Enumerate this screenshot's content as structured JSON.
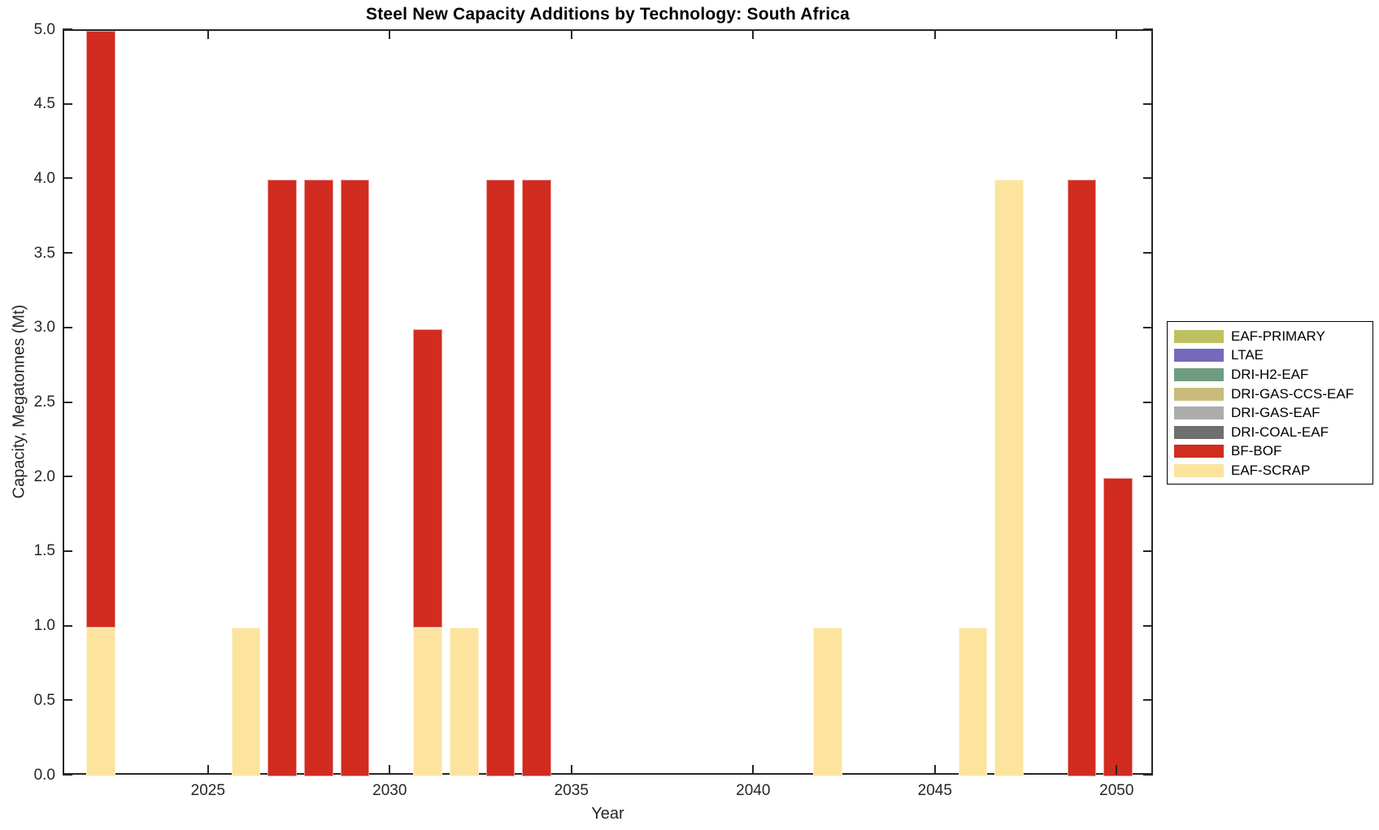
{
  "title": "Steel New Capacity Additions by Technology: South Africa",
  "colors": {
    "background": "#FFFFFF",
    "axis": "#262626",
    "text": "#262626",
    "legend_border": "#000000"
  },
  "chart_data": {
    "type": "bar",
    "stacked": true,
    "title": "Steel New Capacity Additions by Technology: South Africa",
    "xlabel": "Year",
    "ylabel": "Capacity, Megatonnes (Mt)",
    "xlim": [
      2021,
      2051
    ],
    "ylim": [
      0,
      5
    ],
    "bar_width_years": 0.8,
    "grid": false,
    "xticks": [
      2025,
      2030,
      2035,
      2040,
      2045,
      2050
    ],
    "yticks": [
      {
        "value": 0.0,
        "label": "0.0"
      },
      {
        "value": 0.5,
        "label": "0.5"
      },
      {
        "value": 1.0,
        "label": "1.0"
      },
      {
        "value": 1.5,
        "label": "1.5"
      },
      {
        "value": 2.0,
        "label": "2.0"
      },
      {
        "value": 2.5,
        "label": "2.5"
      },
      {
        "value": 3.0,
        "label": "3.0"
      },
      {
        "value": 3.5,
        "label": "3.5"
      },
      {
        "value": 4.0,
        "label": "4.0"
      },
      {
        "value": 4.5,
        "label": "4.5"
      },
      {
        "value": 5.0,
        "label": "5.0"
      }
    ],
    "legend_position": "right-outside",
    "series": [
      {
        "name": "EAF-PRIMARY",
        "color": "#BDC161",
        "points": []
      },
      {
        "name": "LTAE",
        "color": "#7569BE",
        "points": []
      },
      {
        "name": "DRI-H2-EAF",
        "color": "#6F9C80",
        "points": []
      },
      {
        "name": "DRI-GAS-CCS-EAF",
        "color": "#C8BB7B",
        "points": []
      },
      {
        "name": "DRI-GAS-EAF",
        "color": "#ACACAC",
        "points": []
      },
      {
        "name": "DRI-COAL-EAF",
        "color": "#6F6F6F",
        "points": []
      },
      {
        "name": "BF-BOF",
        "color": "#D22B20",
        "points": [
          {
            "year": 2022,
            "value": 4
          },
          {
            "year": 2027,
            "value": 4
          },
          {
            "year": 2028,
            "value": 4
          },
          {
            "year": 2029,
            "value": 4
          },
          {
            "year": 2031,
            "value": 2
          },
          {
            "year": 2033,
            "value": 4
          },
          {
            "year": 2034,
            "value": 4
          },
          {
            "year": 2049,
            "value": 4
          },
          {
            "year": 2050,
            "value": 2
          }
        ]
      },
      {
        "name": "EAF-SCRAP",
        "color": "#FCE49E",
        "points": [
          {
            "year": 2022,
            "value": 1
          },
          {
            "year": 2026,
            "value": 1
          },
          {
            "year": 2031,
            "value": 1
          },
          {
            "year": 2032,
            "value": 1
          },
          {
            "year": 2042,
            "value": 1
          },
          {
            "year": 2046,
            "value": 1
          },
          {
            "year": 2047,
            "value": 4
          }
        ]
      }
    ],
    "stack_order_bottom_to_top": [
      "EAF-SCRAP",
      "BF-BOF",
      "DRI-COAL-EAF",
      "DRI-GAS-EAF",
      "DRI-GAS-CCS-EAF",
      "DRI-H2-EAF",
      "LTAE",
      "EAF-PRIMARY"
    ]
  }
}
